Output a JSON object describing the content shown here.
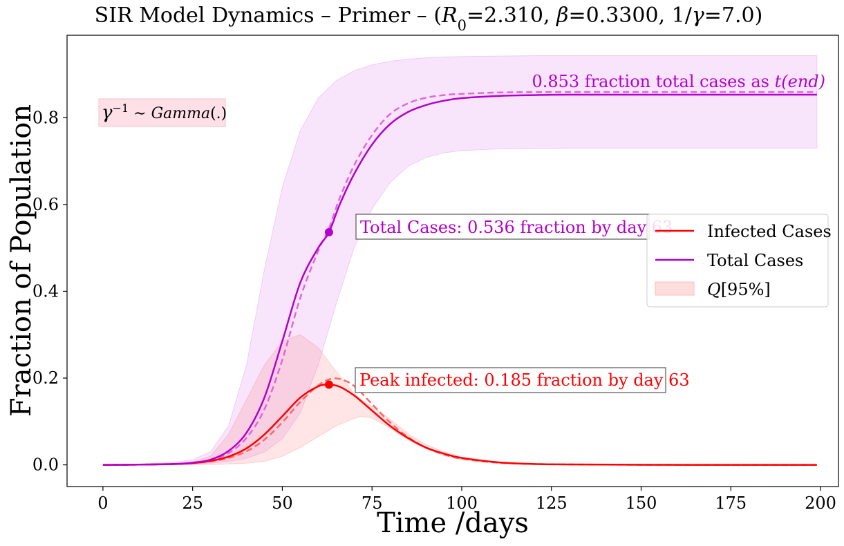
{
  "chart_data": {
    "type": "line",
    "title": "SIR Model Dynamics – Primer – (R0=2.310, β=0.3300, 1/γ=7.0)",
    "title_parts": {
      "prefix": "SIR Model Dynamics – Primer – (",
      "r_symbol": "R",
      "r_sub": "0",
      "r_value": "=2.310, ",
      "beta_symbol": "β",
      "beta_value": "=0.3300, 1/",
      "gamma_symbol": "γ",
      "gamma_value": "=7.0)"
    },
    "xlabel": "Time /days",
    "ylabel": "Fraction of Population",
    "xlim": [
      -10,
      205
    ],
    "ylim": [
      -0.05,
      0.99
    ],
    "xticks": [
      0,
      25,
      50,
      75,
      100,
      125,
      150,
      175,
      200
    ],
    "yticks": [
      0.0,
      0.2,
      0.4,
      0.6,
      0.8
    ],
    "ytick_labels": [
      "0.0",
      "0.2",
      "0.4",
      "0.6",
      "0.8"
    ],
    "series": [
      {
        "name": "Infected Cases",
        "color": "#ff0000",
        "style": "solid",
        "x": [
          0,
          10,
          20,
          25,
          30,
          35,
          40,
          45,
          50,
          55,
          60,
          63,
          66,
          70,
          75,
          80,
          85,
          90,
          95,
          100,
          110,
          120,
          130,
          150,
          175,
          199
        ],
        "y": [
          0,
          0.0005,
          0.002,
          0.004,
          0.009,
          0.019,
          0.038,
          0.07,
          0.112,
          0.155,
          0.181,
          0.185,
          0.18,
          0.16,
          0.125,
          0.09,
          0.062,
          0.04,
          0.026,
          0.016,
          0.006,
          0.002,
          0.001,
          0.0002,
          0,
          0
        ]
      },
      {
        "name": "Total Cases",
        "color": "#b300cc",
        "style": "solid",
        "x": [
          0,
          10,
          20,
          25,
          30,
          35,
          40,
          45,
          50,
          55,
          60,
          63,
          66,
          70,
          75,
          80,
          85,
          90,
          95,
          100,
          110,
          120,
          130,
          150,
          175,
          199
        ],
        "y": [
          0,
          0.0005,
          0.002,
          0.005,
          0.012,
          0.032,
          0.074,
          0.155,
          0.285,
          0.42,
          0.5,
          0.536,
          0.6,
          0.67,
          0.738,
          0.785,
          0.813,
          0.829,
          0.839,
          0.845,
          0.85,
          0.852,
          0.853,
          0.853,
          0.853,
          0.853
        ]
      },
      {
        "name": "Infected Cases (dashed)",
        "color": "#ff6666",
        "style": "dashed",
        "x": [
          0,
          10,
          20,
          25,
          30,
          35,
          40,
          45,
          50,
          55,
          60,
          63,
          66,
          70,
          75,
          80,
          85,
          90,
          95,
          100,
          110,
          120,
          130,
          150,
          175,
          199
        ],
        "y": [
          0,
          0.0005,
          0.002,
          0.004,
          0.008,
          0.016,
          0.031,
          0.058,
          0.098,
          0.145,
          0.183,
          0.197,
          0.198,
          0.182,
          0.14,
          0.098,
          0.064,
          0.04,
          0.024,
          0.014,
          0.005,
          0.002,
          0.001,
          0.0002,
          0,
          0
        ]
      },
      {
        "name": "Total Cases (dashed)",
        "color": "#e066e0",
        "style": "dashed",
        "x": [
          0,
          10,
          20,
          25,
          30,
          35,
          40,
          45,
          50,
          55,
          60,
          63,
          66,
          70,
          75,
          80,
          85,
          90,
          95,
          100,
          110,
          120,
          130,
          150,
          175,
          199
        ],
        "y": [
          0,
          0.0005,
          0.002,
          0.005,
          0.011,
          0.027,
          0.062,
          0.128,
          0.242,
          0.385,
          0.493,
          0.545,
          0.615,
          0.69,
          0.76,
          0.808,
          0.833,
          0.846,
          0.852,
          0.855,
          0.858,
          0.859,
          0.859,
          0.859,
          0.859,
          0.859
        ]
      }
    ],
    "bands": [
      {
        "name": "Total Cases band",
        "color": "#dd88ee",
        "opacity": 0.22,
        "x": [
          0,
          10,
          20,
          25,
          30,
          35,
          40,
          45,
          50,
          55,
          60,
          65,
          70,
          75,
          80,
          85,
          90,
          95,
          100,
          110,
          120,
          130,
          150,
          175,
          199
        ],
        "lower": [
          0,
          0,
          0.001,
          0.002,
          0.004,
          0.008,
          0.015,
          0.03,
          0.06,
          0.12,
          0.23,
          0.37,
          0.5,
          0.59,
          0.65,
          0.688,
          0.708,
          0.719,
          0.724,
          0.728,
          0.729,
          0.73,
          0.73,
          0.73,
          0.73
        ],
        "upper": [
          0,
          0.002,
          0.006,
          0.012,
          0.03,
          0.09,
          0.23,
          0.45,
          0.64,
          0.77,
          0.845,
          0.885,
          0.908,
          0.922,
          0.93,
          0.935,
          0.938,
          0.94,
          0.941,
          0.942,
          0.943,
          0.943,
          0.943,
          0.943,
          0.943
        ]
      },
      {
        "name": "Q[95%]",
        "color": "#ff8888",
        "opacity": 0.22,
        "x": [
          0,
          10,
          20,
          25,
          30,
          35,
          40,
          45,
          50,
          55,
          60,
          65,
          70,
          72,
          75,
          80,
          85,
          90,
          95,
          100,
          110,
          120,
          130,
          150,
          175,
          199
        ],
        "lower": [
          0,
          0,
          0,
          0.0005,
          0.001,
          0.002,
          0.004,
          0.008,
          0.02,
          0.04,
          0.065,
          0.09,
          0.107,
          0.112,
          0.108,
          0.085,
          0.058,
          0.037,
          0.022,
          0.013,
          0.004,
          0.001,
          0,
          0,
          0,
          0
        ],
        "upper": [
          0,
          0.001,
          0.003,
          0.007,
          0.02,
          0.07,
          0.15,
          0.23,
          0.285,
          0.3,
          0.27,
          0.215,
          0.165,
          0.15,
          0.135,
          0.105,
          0.072,
          0.047,
          0.03,
          0.018,
          0.007,
          0.002,
          0.001,
          0,
          0,
          0
        ]
      }
    ],
    "markers": [
      {
        "name": "peak-infected-marker",
        "x": 63,
        "y": 0.185,
        "color": "#ff0000"
      },
      {
        "name": "total-cases-marker",
        "x": 63,
        "y": 0.536,
        "color": "#b300cc"
      }
    ],
    "annotations": {
      "total_cases": "Total Cases: 0.536 fraction by day 63",
      "peak_infected": "Peak infected: 0.185 fraction by day 63",
      "end_prefix": "0.853 fraction total cases as ",
      "end_t": "t",
      "end_arg": "(end)",
      "gamma_symbol": "γ",
      "gamma_exp": "−1",
      "gamma_sim": " ∼ ",
      "gamma_dist": "Gamma",
      "gamma_arg": "(.)"
    },
    "legend": {
      "position": "center-right",
      "entries": [
        {
          "label": "Infected Cases",
          "kind": "line",
          "color": "#ff0000"
        },
        {
          "label": "Total Cases",
          "kind": "line",
          "color": "#b300cc"
        },
        {
          "label_q": "Q",
          "label_rest": "[95%]",
          "kind": "patch",
          "color": "#ff8888"
        }
      ]
    },
    "grid": false
  }
}
